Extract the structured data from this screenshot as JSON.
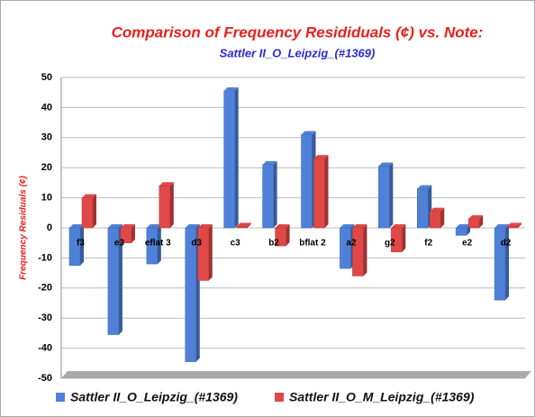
{
  "chart_data": {
    "type": "bar",
    "title": "Comparison of Frequency Resididuals (¢) vs. Note:",
    "subtitle": "Sattler II_O_Leipzig_(#1369)",
    "y_label": "Frequency Residuals (¢)",
    "categories": [
      "f3",
      "e3",
      "eflat 3",
      "d3",
      "c3",
      "b2",
      "bflat 2",
      "a2",
      "g2",
      "f2",
      "e2",
      "d2"
    ],
    "series": [
      {
        "name": "Sattler II_O_Leipzig_(#1369)",
        "color": "#4f81d9",
        "values": [
          -12.5,
          -35.5,
          -12,
          -44.5,
          45.5,
          21,
          31,
          -13.5,
          20.5,
          13,
          -2.5,
          -24
        ]
      },
      {
        "name": "Sattler  II_O_M_Leipzig_(#1369)",
        "color": "#e04848",
        "values": [
          10,
          -5,
          14,
          -17.5,
          0.5,
          -6,
          23,
          -16,
          -8,
          5.5,
          3,
          0.5
        ]
      }
    ],
    "ylim": [
      -50,
      50
    ],
    "yticks": [
      -50,
      -40,
      -30,
      -20,
      -10,
      0,
      10,
      20,
      30,
      40,
      50
    ],
    "grid": true
  }
}
